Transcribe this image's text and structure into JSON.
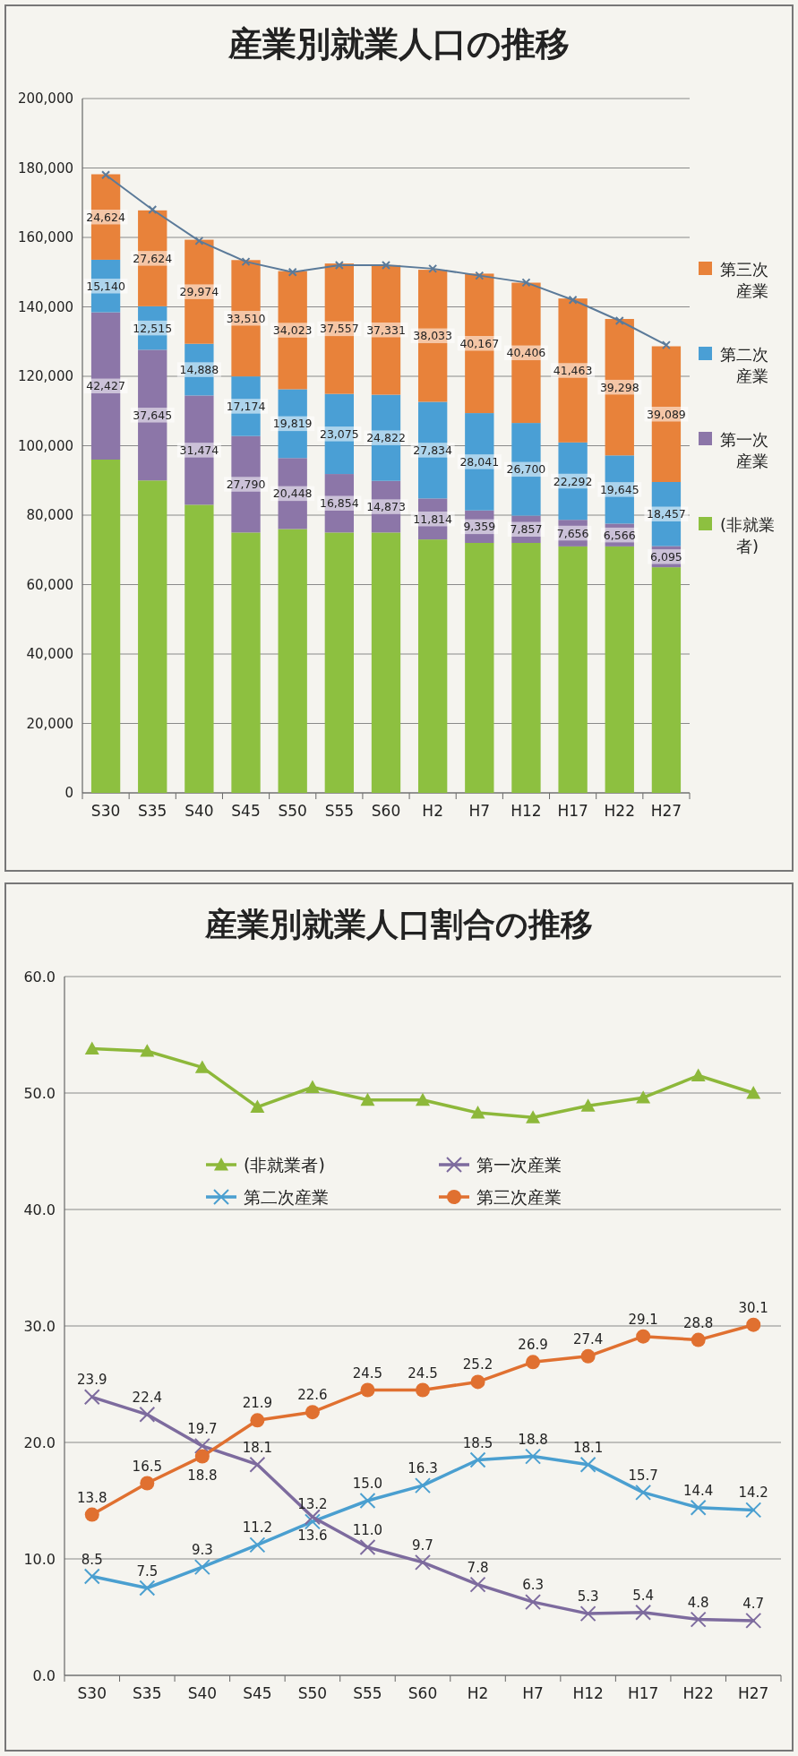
{
  "chart_data": [
    {
      "type": "bar",
      "stacked": true,
      "title": "産業別就業人口の推移",
      "categories": [
        "S30",
        "S35",
        "S40",
        "S45",
        "S50",
        "S55",
        "S60",
        "H2",
        "H7",
        "H12",
        "H17",
        "H22",
        "H27"
      ],
      "series": [
        {
          "name": "(非就業者)",
          "color": "#8dc040",
          "values": [
            96000,
            90000,
            83000,
            75000,
            76000,
            75000,
            75000,
            73000,
            72000,
            72000,
            71000,
            71000,
            65000
          ]
        },
        {
          "name": "第一次産業",
          "color": "#8c76a8",
          "values": [
            42427,
            37645,
            31474,
            27790,
            20448,
            16854,
            14873,
            11814,
            9359,
            7857,
            7656,
            6566,
            6095
          ],
          "value_labels": [
            "42,427",
            "37,645",
            "31,474",
            "27,790",
            "20,448",
            "16,854",
            "14,873",
            "11,814",
            "9,359",
            "7,857",
            "7,656",
            "6,566",
            "6,095"
          ]
        },
        {
          "name": "第二次産業",
          "color": "#4a9fd5",
          "values": [
            15140,
            12515,
            14888,
            17174,
            19819,
            23075,
            24822,
            27834,
            28041,
            26700,
            22292,
            19645,
            18457
          ],
          "value_labels": [
            "15,140",
            "12,515",
            "14,888",
            "17,174",
            "19,819",
            "23,075",
            "24,822",
            "27,834",
            "28,041",
            "26,700",
            "22,292",
            "19,645",
            "18,457"
          ]
        },
        {
          "name": "第三次産業",
          "color": "#e8823a",
          "values": [
            24624,
            27624,
            29974,
            33510,
            34023,
            37557,
            37331,
            38033,
            40167,
            40406,
            41463,
            39298,
            39089
          ],
          "value_labels": [
            "24,624",
            "27,624",
            "29,974",
            "33,510",
            "34,023",
            "37,557",
            "37,331",
            "38,033",
            "40,167",
            "40,406",
            "41,463",
            "39,298",
            "39,089"
          ]
        },
        {
          "type": "line",
          "color": "#5b7a99",
          "marker": "cross",
          "values": [
            178000,
            168000,
            159000,
            153000,
            150000,
            152000,
            152000,
            151000,
            149000,
            147000,
            142000,
            136000,
            129000
          ]
        }
      ],
      "ylim": [
        0,
        200000
      ],
      "yticks": [
        0,
        {
          "value": 20000,
          "label": "20,000"
        },
        {
          "value": 40000,
          "label": "40,000"
        },
        {
          "value": 60000,
          "label": "60,000"
        },
        {
          "value": 80000,
          "label": "80,000"
        },
        {
          "value": 100000,
          "label": "100,000"
        },
        {
          "value": 120000,
          "label": "120,000"
        },
        {
          "value": 140000,
          "label": "140,000"
        },
        {
          "value": 160000,
          "label": "160,000"
        },
        {
          "value": 180000,
          "label": "180,000"
        },
        {
          "value": 200000,
          "label": "200,000"
        }
      ],
      "grid": "y",
      "legend": "right"
    },
    {
      "type": "line",
      "title": "産業別就業人口割合の推移",
      "categories": [
        "S30",
        "S35",
        "S40",
        "S45",
        "S50",
        "S55",
        "S60",
        "H2",
        "H7",
        "H12",
        "H17",
        "H22",
        "H27"
      ],
      "series": [
        {
          "name": "(非就業者)",
          "color": "#8db83a",
          "marker": "triangle",
          "values": [
            53.8,
            53.6,
            52.2,
            48.8,
            50.5,
            49.4,
            49.4,
            48.3,
            47.9,
            48.9,
            49.6,
            51.5,
            50.0
          ]
        },
        {
          "name": "第二次産業",
          "color": "#4a9fd0",
          "marker": "cross",
          "values": [
            8.5,
            7.5,
            9.3,
            11.2,
            13.2,
            15.0,
            16.3,
            18.5,
            18.8,
            18.1,
            15.7,
            14.4,
            14.2
          ],
          "value_labels": [
            "8.5",
            "7.5",
            "9.3",
            "11.2",
            "13.2",
            "15.0",
            "16.3",
            "18.5",
            "18.8",
            "18.1",
            "15.7",
            "14.4",
            "14.2"
          ]
        },
        {
          "name": "第一次産業",
          "color": "#7d6b9e",
          "marker": "cross",
          "values": [
            23.9,
            22.4,
            19.7,
            18.1,
            13.6,
            11.0,
            9.7,
            7.8,
            6.3,
            5.3,
            5.4,
            4.8,
            4.7
          ],
          "value_labels": [
            "23.9",
            "22.4",
            "19.7",
            "18.1",
            "13.6",
            "11.0",
            "9.7",
            "7.8",
            "6.3",
            "5.3",
            "5.4",
            "4.8",
            "4.7"
          ]
        },
        {
          "name": "第三次産業",
          "color": "#e07030",
          "marker": "circle",
          "values": [
            13.8,
            16.5,
            18.8,
            21.9,
            22.6,
            24.5,
            24.5,
            25.2,
            26.9,
            27.4,
            29.1,
            28.8,
            30.1
          ],
          "value_labels": [
            "13.8",
            "16.5",
            "18.8",
            "21.9",
            "22.6",
            "24.5",
            "24.5",
            "25.2",
            "26.9",
            "27.4",
            "29.1",
            "28.8",
            "30.1"
          ]
        }
      ],
      "ylim": [
        0,
        60
      ],
      "yticks": [
        {
          "value": 0,
          "label": "0.0"
        },
        {
          "value": 10,
          "label": "10.0"
        },
        {
          "value": 20,
          "label": "20.0"
        },
        {
          "value": 30,
          "label": "30.0"
        },
        {
          "value": 40,
          "label": "40.0"
        },
        {
          "value": 50,
          "label": "50.0"
        },
        {
          "value": 60,
          "label": "60.0"
        }
      ],
      "grid": "y",
      "legend": "top"
    }
  ]
}
